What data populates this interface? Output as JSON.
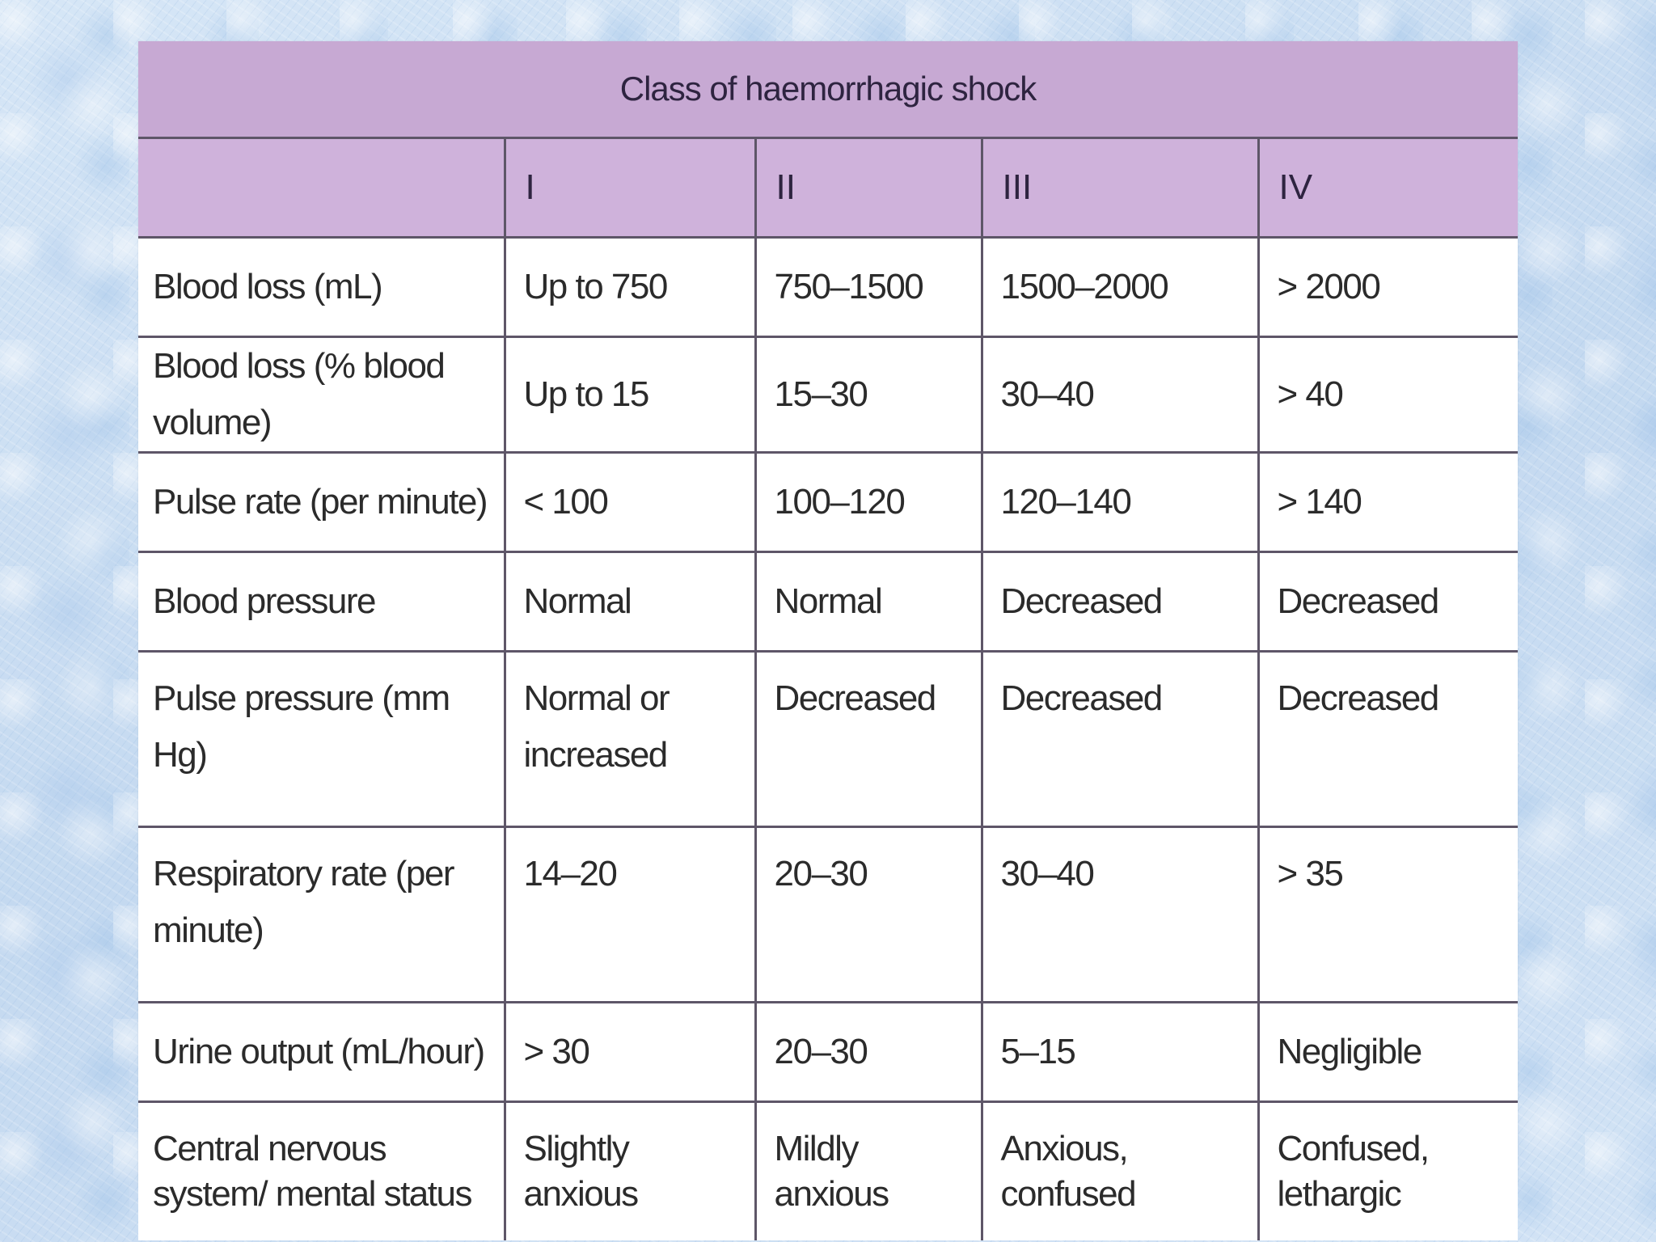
{
  "table": {
    "title": "Class of haemorrhagic shock",
    "header": [
      "",
      "I",
      "II",
      "III",
      "IV"
    ],
    "rows": [
      {
        "label": "Blood loss (mL)",
        "values": [
          "Up to 750",
          "750–1500",
          "1500–2000",
          "> 2000"
        ]
      },
      {
        "label": "Blood loss (% blood volume)",
        "values": [
          "Up to 15",
          "15–30",
          "30–40",
          "> 40"
        ]
      },
      {
        "label": "Pulse rate (per minute)",
        "values": [
          "< 100",
          "100–120",
          "120–140",
          "> 140"
        ]
      },
      {
        "label": "Blood pressure",
        "values": [
          "Normal",
          "Normal",
          "Decreased",
          "Decreased"
        ]
      },
      {
        "label": "Pulse pressure (mm Hg)",
        "values": [
          "Normal or increased",
          "Decreased",
          "Decreased",
          "Decreased"
        ]
      },
      {
        "label": "Respiratory rate (per minute)",
        "values": [
          "14–20",
          "20–30",
          "30–40",
          "> 35"
        ]
      },
      {
        "label": "Urine output (mL/hour)",
        "values": [
          "> 30",
          "20–30",
          "5–15",
          "Negligible"
        ]
      },
      {
        "label": "Central nervous system/ mental status",
        "values": [
          "Slightly anxious",
          "Mildly anxious",
          "Anxious, confused",
          "Confused, lethargic"
        ]
      }
    ]
  },
  "colors": {
    "header_title_bg": "#c7a9d3",
    "header_class_bg": "#cfb2db",
    "border": "#5e5668",
    "slide_background": "#cfe0f3"
  }
}
